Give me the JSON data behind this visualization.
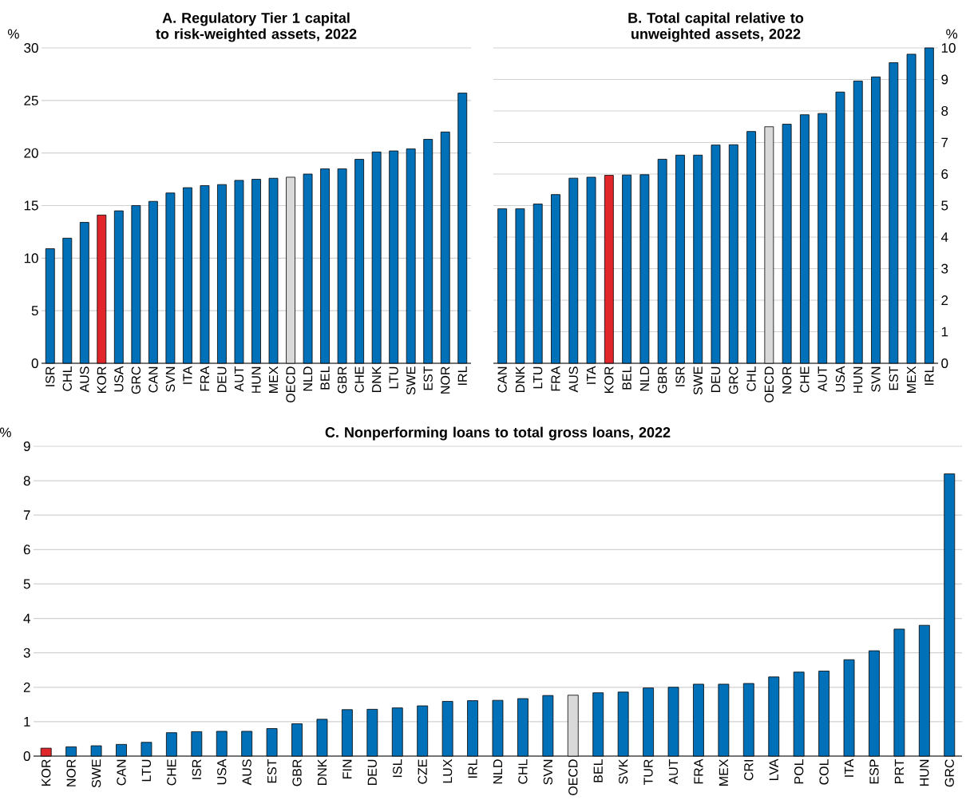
{
  "chart_data": [
    {
      "type": "bar",
      "title": "A. Regulatory Tier 1 capital to risk-weighted assets, 2022",
      "ylabel": "%",
      "categories": [
        "ISR",
        "CHL",
        "AUS",
        "KOR",
        "USA",
        "GRC",
        "CAN",
        "SVN",
        "ITA",
        "FRA",
        "DEU",
        "AUT",
        "HUN",
        "MEX",
        "OECD",
        "NLD",
        "BEL",
        "GBR",
        "CHE",
        "DNK",
        "LTU",
        "SWE",
        "EST",
        "NOR",
        "IRL"
      ],
      "values": [
        10.9,
        11.9,
        13.4,
        14.1,
        14.5,
        15.0,
        15.4,
        16.2,
        16.7,
        16.9,
        17.0,
        17.4,
        17.5,
        17.6,
        17.7,
        18.0,
        18.5,
        18.5,
        19.4,
        20.1,
        20.2,
        20.4,
        21.3,
        22.0,
        25.7
      ],
      "colors": [
        "#0070b8",
        "#0070b8",
        "#0070b8",
        "#e0262b",
        "#0070b8",
        "#0070b8",
        "#0070b8",
        "#0070b8",
        "#0070b8",
        "#0070b8",
        "#0070b8",
        "#0070b8",
        "#0070b8",
        "#0070b8",
        "#d9d9d9",
        "#0070b8",
        "#0070b8",
        "#0070b8",
        "#0070b8",
        "#0070b8",
        "#0070b8",
        "#0070b8",
        "#0070b8",
        "#0070b8",
        "#0070b8"
      ],
      "ylim": [
        0,
        30
      ],
      "yticks": [
        0,
        5,
        10,
        15,
        20,
        25,
        30
      ],
      "grid": "y"
    },
    {
      "type": "bar",
      "title": "B. Total capital relative to unweighted assets, 2022",
      "ylabel": "%",
      "categories": [
        "CAN",
        "DNK",
        "LTU",
        "FRA",
        "AUS",
        "ITA",
        "KOR",
        "BEL",
        "NLD",
        "GBR",
        "ISR",
        "SWE",
        "DEU",
        "GRC",
        "CHL",
        "OECD",
        "NOR",
        "CHE",
        "AUT",
        "USA",
        "HUN",
        "SVN",
        "EST",
        "MEX",
        "IRL"
      ],
      "values": [
        4.9,
        4.9,
        5.05,
        5.35,
        5.87,
        5.9,
        5.96,
        5.97,
        5.98,
        6.47,
        6.6,
        6.6,
        6.92,
        6.93,
        7.35,
        7.5,
        7.58,
        7.88,
        7.92,
        8.6,
        8.95,
        9.08,
        9.53,
        9.8,
        10.0
      ],
      "colors": [
        "#0070b8",
        "#0070b8",
        "#0070b8",
        "#0070b8",
        "#0070b8",
        "#0070b8",
        "#e0262b",
        "#0070b8",
        "#0070b8",
        "#0070b8",
        "#0070b8",
        "#0070b8",
        "#0070b8",
        "#0070b8",
        "#0070b8",
        "#d9d9d9",
        "#0070b8",
        "#0070b8",
        "#0070b8",
        "#0070b8",
        "#0070b8",
        "#0070b8",
        "#0070b8",
        "#0070b8",
        "#0070b8"
      ],
      "ylim": [
        0,
        10
      ],
      "yticks": [
        0,
        1,
        2,
        3,
        4,
        5,
        6,
        7,
        8,
        9,
        10
      ],
      "grid": "y"
    },
    {
      "type": "bar",
      "title": "C. Nonperforming loans to total gross loans, 2022",
      "ylabel": "%",
      "categories": [
        "KOR",
        "NOR",
        "SWE",
        "CAN",
        "LTU",
        "CHE",
        "ISR",
        "USA",
        "AUS",
        "EST",
        "GBR",
        "DNK",
        "FIN",
        "DEU",
        "ISL",
        "CZE",
        "LUX",
        "IRL",
        "NLD",
        "CHL",
        "SVN",
        "OECD",
        "BEL",
        "SVK",
        "TUR",
        "AUT",
        "FRA",
        "MEX",
        "CRI",
        "LVA",
        "POL",
        "COL",
        "ITA",
        "ESP",
        "PRT",
        "HUN",
        "GRC"
      ],
      "values": [
        0.23,
        0.27,
        0.3,
        0.34,
        0.4,
        0.68,
        0.71,
        0.72,
        0.72,
        0.8,
        0.94,
        1.07,
        1.35,
        1.36,
        1.4,
        1.46,
        1.59,
        1.61,
        1.62,
        1.67,
        1.76,
        1.77,
        1.84,
        1.86,
        1.98,
        2.0,
        2.09,
        2.09,
        2.11,
        2.3,
        2.44,
        2.47,
        2.8,
        3.06,
        3.69,
        3.8,
        8.2
      ],
      "colors": [
        "#e0262b",
        "#0070b8",
        "#0070b8",
        "#0070b8",
        "#0070b8",
        "#0070b8",
        "#0070b8",
        "#0070b8",
        "#0070b8",
        "#0070b8",
        "#0070b8",
        "#0070b8",
        "#0070b8",
        "#0070b8",
        "#0070b8",
        "#0070b8",
        "#0070b8",
        "#0070b8",
        "#0070b8",
        "#0070b8",
        "#0070b8",
        "#d9d9d9",
        "#0070b8",
        "#0070b8",
        "#0070b8",
        "#0070b8",
        "#0070b8",
        "#0070b8",
        "#0070b8",
        "#0070b8",
        "#0070b8",
        "#0070b8",
        "#0070b8",
        "#0070b8",
        "#0070b8",
        "#0070b8",
        "#0070b8"
      ],
      "ylim": [
        0,
        9
      ],
      "yticks": [
        0,
        1,
        2,
        3,
        4,
        5,
        6,
        7,
        8,
        9
      ],
      "grid": "y"
    }
  ]
}
